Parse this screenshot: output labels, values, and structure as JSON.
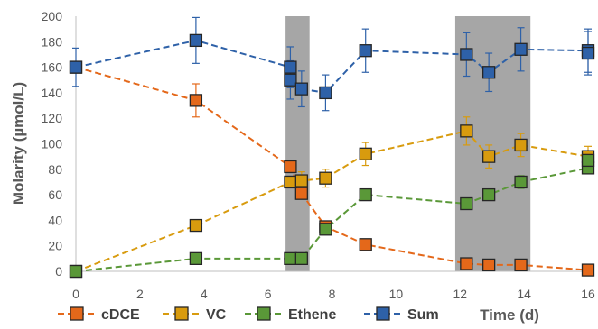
{
  "chart_data": {
    "type": "line",
    "title": "",
    "xlabel": "Time (d)",
    "ylabel": "Molarity (µmol/L)",
    "xlim": [
      0,
      16
    ],
    "ylim": [
      0,
      200
    ],
    "xticks": [
      "0",
      "2",
      "4",
      "6",
      "8",
      "10",
      "12",
      "14",
      "16"
    ],
    "yticks": [
      "0",
      "20",
      "40",
      "60",
      "80",
      "100",
      "120",
      "140",
      "160",
      "180",
      "200"
    ],
    "grid": false,
    "legend_position": "bottom-left",
    "shaded_intervals": [
      [
        6.55,
        7.3
      ],
      [
        11.85,
        14.2
      ]
    ],
    "series": [
      {
        "name": "cDCE",
        "color": "#E4681A",
        "marker_fill": "#E4681A",
        "x": [
          0,
          3.75,
          6.7,
          7.05,
          7.8,
          9.05,
          12.2,
          12.9,
          13.9,
          16
        ],
        "y": [
          160,
          134,
          82,
          61,
          35,
          21,
          6,
          5,
          5,
          1
        ],
        "error": [
          0,
          13,
          0,
          0,
          0,
          0,
          0,
          0,
          0,
          0
        ]
      },
      {
        "name": "VC",
        "color": "#D89B0E",
        "marker_fill": "#D89B0E",
        "x": [
          0,
          3.75,
          6.7,
          7.05,
          7.8,
          9.05,
          12.2,
          12.9,
          13.9,
          16
        ],
        "y": [
          0,
          36,
          70,
          71,
          73,
          92,
          110,
          90,
          99,
          90
        ],
        "error": [
          0,
          0,
          0,
          7,
          7,
          9,
          11,
          9,
          9,
          8
        ]
      },
      {
        "name": "Ethene",
        "color": "#5A9838",
        "marker_fill": "#5A9838",
        "x": [
          0,
          3.75,
          6.7,
          7.05,
          7.8,
          9.05,
          12.2,
          12.9,
          13.9,
          16,
          16
        ],
        "y": [
          0,
          10,
          10,
          10,
          33,
          60,
          53,
          60,
          70,
          81,
          87
        ],
        "error": [
          0,
          0,
          0,
          0,
          0,
          3,
          3,
          3,
          5,
          4,
          4
        ]
      },
      {
        "name": "Sum",
        "color": "#2E61A8",
        "marker_fill": "#2E61A8",
        "x": [
          0,
          3.75,
          6.7,
          6.7,
          7.05,
          7.8,
          9.05,
          12.2,
          12.9,
          13.9,
          16,
          16
        ],
        "y": [
          160,
          181,
          160,
          150,
          143,
          140,
          173,
          170,
          156,
          174,
          173,
          171
        ],
        "error": [
          15,
          18,
          16,
          15,
          14,
          14,
          17,
          17,
          15,
          17,
          17,
          17
        ]
      }
    ]
  }
}
